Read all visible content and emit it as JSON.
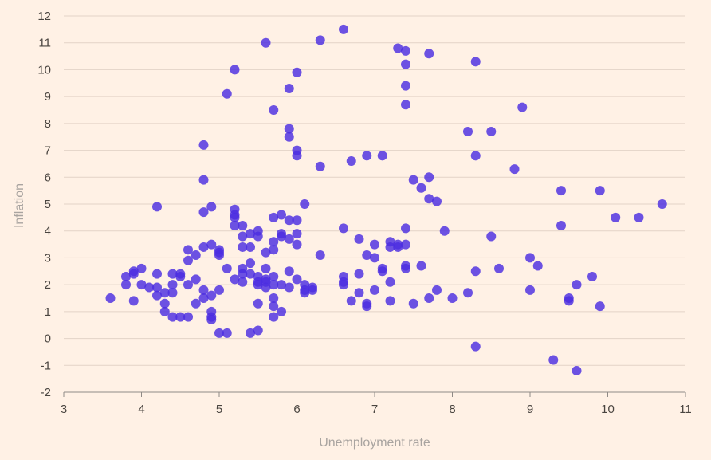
{
  "chart_data": {
    "type": "scatter",
    "xlabel": "Unemployment rate",
    "ylabel": "Inflation",
    "xlim": [
      3,
      11
    ],
    "ylim": [
      -2,
      12
    ],
    "x_ticks": [
      3,
      4,
      5,
      6,
      7,
      8,
      9,
      10,
      11
    ],
    "y_ticks": [
      -2,
      -1,
      0,
      1,
      2,
      3,
      4,
      5,
      6,
      7,
      8,
      9,
      10,
      11,
      12
    ],
    "grid": "horizontal",
    "marker_color": "#4c2de0",
    "points": [
      [
        3.6,
        1.5
      ],
      [
        3.8,
        2.3
      ],
      [
        3.8,
        2.0
      ],
      [
        3.9,
        2.5
      ],
      [
        3.9,
        2.4
      ],
      [
        3.9,
        1.4
      ],
      [
        4.0,
        2.6
      ],
      [
        4.0,
        2.0
      ],
      [
        4.1,
        1.9
      ],
      [
        4.2,
        2.4
      ],
      [
        4.2,
        1.9
      ],
      [
        4.2,
        1.6
      ],
      [
        4.2,
        4.9
      ],
      [
        4.3,
        1.3
      ],
      [
        4.3,
        1.0
      ],
      [
        4.3,
        1.7
      ],
      [
        4.4,
        2.4
      ],
      [
        4.4,
        2.0
      ],
      [
        4.4,
        1.7
      ],
      [
        4.4,
        0.8
      ],
      [
        4.5,
        2.3
      ],
      [
        4.5,
        0.8
      ],
      [
        4.5,
        2.4
      ],
      [
        4.6,
        3.3
      ],
      [
        4.6,
        2.9
      ],
      [
        4.6,
        2.0
      ],
      [
        4.6,
        0.8
      ],
      [
        4.7,
        3.1
      ],
      [
        4.7,
        2.2
      ],
      [
        4.7,
        1.3
      ],
      [
        4.8,
        3.4
      ],
      [
        4.8,
        1.8
      ],
      [
        4.8,
        1.5
      ],
      [
        4.8,
        7.2
      ],
      [
        4.8,
        5.9
      ],
      [
        4.8,
        4.7
      ],
      [
        4.9,
        3.5
      ],
      [
        4.9,
        4.9
      ],
      [
        4.9,
        1.6
      ],
      [
        4.9,
        1.0
      ],
      [
        4.9,
        0.8
      ],
      [
        4.9,
        0.7
      ],
      [
        5.0,
        3.3
      ],
      [
        5.0,
        3.1
      ],
      [
        5.0,
        3.2
      ],
      [
        5.0,
        1.8
      ],
      [
        5.0,
        0.2
      ],
      [
        5.1,
        9.1
      ],
      [
        5.1,
        2.6
      ],
      [
        5.1,
        0.2
      ],
      [
        5.2,
        10.0
      ],
      [
        5.2,
        4.8
      ],
      [
        5.2,
        4.6
      ],
      [
        5.2,
        4.5
      ],
      [
        5.2,
        4.2
      ],
      [
        5.2,
        2.2
      ],
      [
        5.3,
        4.2
      ],
      [
        5.3,
        3.8
      ],
      [
        5.3,
        3.4
      ],
      [
        5.3,
        2.6
      ],
      [
        5.3,
        2.4
      ],
      [
        5.3,
        2.1
      ],
      [
        5.4,
        3.9
      ],
      [
        5.4,
        3.4
      ],
      [
        5.4,
        2.8
      ],
      [
        5.4,
        2.4
      ],
      [
        5.4,
        0.2
      ],
      [
        5.5,
        4.0
      ],
      [
        5.5,
        3.8
      ],
      [
        5.5,
        2.3
      ],
      [
        5.5,
        2.1
      ],
      [
        5.5,
        2.0
      ],
      [
        5.5,
        1.3
      ],
      [
        5.5,
        0.3
      ],
      [
        5.6,
        11.0
      ],
      [
        5.6,
        3.2
      ],
      [
        5.6,
        2.6
      ],
      [
        5.6,
        2.2
      ],
      [
        5.6,
        2.1
      ],
      [
        5.6,
        1.9
      ],
      [
        5.7,
        8.5
      ],
      [
        5.7,
        4.5
      ],
      [
        5.7,
        3.6
      ],
      [
        5.7,
        3.3
      ],
      [
        5.7,
        2.3
      ],
      [
        5.7,
        2.0
      ],
      [
        5.7,
        1.5
      ],
      [
        5.7,
        1.2
      ],
      [
        5.7,
        0.8
      ],
      [
        5.8,
        4.6
      ],
      [
        5.8,
        3.9
      ],
      [
        5.8,
        3.8
      ],
      [
        5.8,
        2.0
      ],
      [
        5.8,
        1.0
      ],
      [
        5.9,
        9.3
      ],
      [
        5.9,
        7.8
      ],
      [
        5.9,
        7.5
      ],
      [
        5.9,
        4.4
      ],
      [
        5.9,
        3.7
      ],
      [
        5.9,
        2.5
      ],
      [
        5.9,
        1.9
      ],
      [
        6.0,
        9.9
      ],
      [
        6.0,
        7.0
      ],
      [
        6.0,
        6.8
      ],
      [
        6.0,
        4.4
      ],
      [
        6.0,
        3.9
      ],
      [
        6.0,
        3.5
      ],
      [
        6.0,
        2.2
      ],
      [
        6.1,
        5.0
      ],
      [
        6.1,
        2.0
      ],
      [
        6.1,
        1.8
      ],
      [
        6.1,
        1.7
      ],
      [
        6.2,
        1.9
      ],
      [
        6.2,
        1.8
      ],
      [
        6.3,
        11.1
      ],
      [
        6.3,
        6.4
      ],
      [
        6.3,
        3.1
      ],
      [
        6.6,
        11.5
      ],
      [
        6.6,
        4.1
      ],
      [
        6.6,
        2.3
      ],
      [
        6.6,
        2.1
      ],
      [
        6.6,
        2.0
      ],
      [
        6.7,
        6.6
      ],
      [
        6.7,
        1.4
      ],
      [
        6.8,
        3.7
      ],
      [
        6.8,
        2.4
      ],
      [
        6.8,
        1.7
      ],
      [
        6.9,
        6.8
      ],
      [
        6.9,
        3.1
      ],
      [
        6.9,
        1.3
      ],
      [
        6.9,
        1.2
      ],
      [
        7.0,
        3.5
      ],
      [
        7.0,
        3.0
      ],
      [
        7.0,
        1.8
      ],
      [
        7.1,
        6.8
      ],
      [
        7.1,
        2.6
      ],
      [
        7.1,
        2.5
      ],
      [
        7.2,
        3.6
      ],
      [
        7.2,
        3.4
      ],
      [
        7.2,
        2.1
      ],
      [
        7.2,
        1.4
      ],
      [
        7.3,
        10.8
      ],
      [
        7.3,
        3.5
      ],
      [
        7.3,
        3.4
      ],
      [
        7.4,
        10.7
      ],
      [
        7.4,
        10.2
      ],
      [
        7.4,
        9.4
      ],
      [
        7.4,
        8.7
      ],
      [
        7.4,
        4.1
      ],
      [
        7.4,
        3.5
      ],
      [
        7.4,
        2.7
      ],
      [
        7.4,
        2.6
      ],
      [
        7.5,
        5.9
      ],
      [
        7.5,
        1.3
      ],
      [
        7.6,
        5.6
      ],
      [
        7.6,
        2.7
      ],
      [
        7.7,
        10.6
      ],
      [
        7.7,
        6.0
      ],
      [
        7.7,
        5.2
      ],
      [
        7.7,
        1.5
      ],
      [
        7.8,
        5.1
      ],
      [
        7.8,
        1.8
      ],
      [
        7.9,
        4.0
      ],
      [
        8.0,
        1.5
      ],
      [
        8.2,
        7.7
      ],
      [
        8.2,
        1.7
      ],
      [
        8.3,
        10.3
      ],
      [
        8.3,
        6.8
      ],
      [
        8.3,
        2.5
      ],
      [
        8.3,
        -0.3
      ],
      [
        8.5,
        7.7
      ],
      [
        8.5,
        3.8
      ],
      [
        8.6,
        2.6
      ],
      [
        8.8,
        6.3
      ],
      [
        8.9,
        8.6
      ],
      [
        9.0,
        3.0
      ],
      [
        9.0,
        1.8
      ],
      [
        9.1,
        2.7
      ],
      [
        9.3,
        -0.8
      ],
      [
        9.4,
        5.5
      ],
      [
        9.4,
        4.2
      ],
      [
        9.5,
        1.5
      ],
      [
        9.5,
        1.4
      ],
      [
        9.6,
        2.0
      ],
      [
        9.6,
        -1.2
      ],
      [
        9.8,
        2.3
      ],
      [
        9.9,
        5.5
      ],
      [
        9.9,
        1.2
      ],
      [
        10.1,
        4.5
      ],
      [
        10.4,
        4.5
      ],
      [
        10.7,
        5.0
      ]
    ]
  }
}
